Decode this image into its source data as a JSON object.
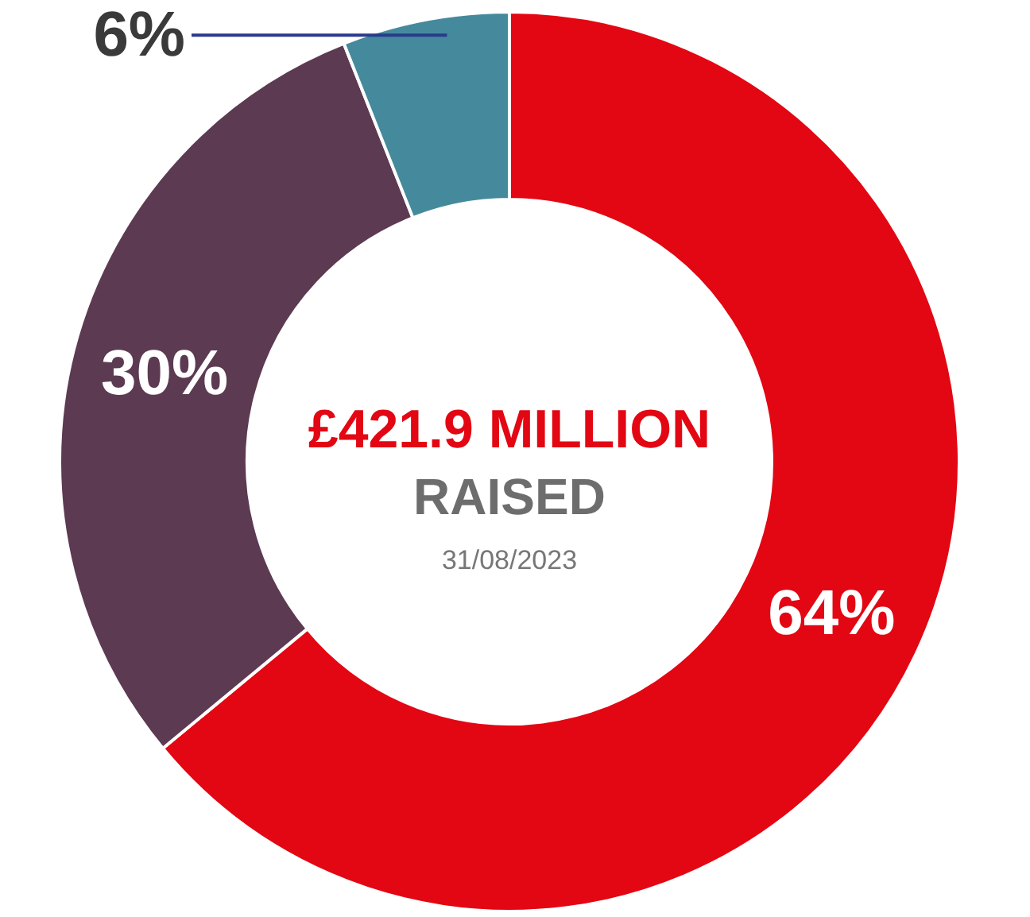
{
  "chart_data": {
    "type": "donut",
    "categories": [
      null,
      null,
      null
    ],
    "values": [
      64,
      30,
      6
    ],
    "colors": [
      "#e30613",
      "#5c3a52",
      "#458a9c"
    ],
    "value_labels": [
      "64%",
      "30%",
      "6%"
    ],
    "annotations": [
      "£421.9 MILLION",
      "RAISED",
      "31/08/2023"
    ]
  }
}
